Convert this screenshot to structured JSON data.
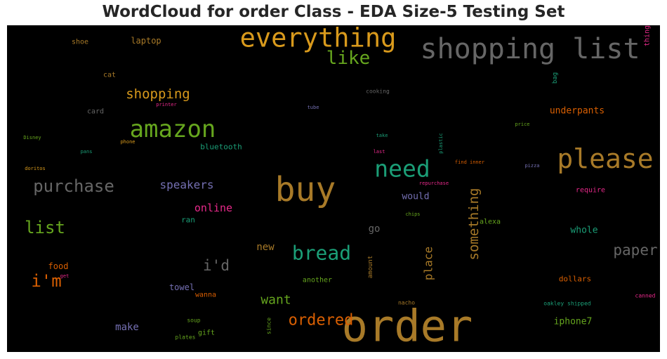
{
  "chart_data": {
    "type": "wordcloud",
    "title": "WordCloud for order Class - EDA Size-5 Testing Set",
    "background": "#000000",
    "words": [
      {
        "text": "order",
        "color": "#a87a28",
        "weight": 62
      },
      {
        "text": "buy",
        "color": "#a87a28",
        "weight": 48
      },
      {
        "text": "shopping list",
        "color": "#666666",
        "weight": 40
      },
      {
        "text": "everything",
        "color": "#d99a1c",
        "weight": 37
      },
      {
        "text": "please",
        "color": "#a87a28",
        "weight": 38
      },
      {
        "text": "amazon",
        "color": "#66a61e",
        "weight": 34
      },
      {
        "text": "need",
        "color": "#1b9e77",
        "weight": 33
      },
      {
        "text": "bread",
        "color": "#1b9e77",
        "weight": 28
      },
      {
        "text": "like",
        "color": "#66a61e",
        "weight": 26
      },
      {
        "text": "purchase",
        "color": "#666666",
        "weight": 24
      },
      {
        "text": "list",
        "color": "#66a61e",
        "weight": 24
      },
      {
        "text": "i'm",
        "color": "#d95f02",
        "weight": 24
      },
      {
        "text": "paper",
        "color": "#666666",
        "weight": 21
      },
      {
        "text": "ordered",
        "color": "#d95f02",
        "weight": 22
      },
      {
        "text": "something",
        "color": "#a87a28",
        "weight": 19
      },
      {
        "text": "i'd",
        "color": "#666666",
        "weight": 21
      },
      {
        "text": "want",
        "color": "#66a61e",
        "weight": 18
      },
      {
        "text": "shopping",
        "color": "#d99a1c",
        "weight": 19
      },
      {
        "text": "speakers",
        "color": "#7570b3",
        "weight": 16
      },
      {
        "text": "place",
        "color": "#a87a28",
        "weight": 16
      },
      {
        "text": "online",
        "color": "#e7298a",
        "weight": 15
      },
      {
        "text": "new",
        "color": "#a87a28",
        "weight": 14
      },
      {
        "text": "go",
        "color": "#666666",
        "weight": 14
      },
      {
        "text": "iphone7",
        "color": "#66a61e",
        "weight": 13
      },
      {
        "text": "make",
        "color": "#7570b3",
        "weight": 14
      },
      {
        "text": "whole",
        "color": "#1b9e77",
        "weight": 13
      },
      {
        "text": "underpants",
        "color": "#d95f02",
        "weight": 13
      },
      {
        "text": "would",
        "color": "#7570b3",
        "weight": 13
      },
      {
        "text": "towel",
        "color": "#7570b3",
        "weight": 12
      },
      {
        "text": "food",
        "color": "#d95f02",
        "weight": 12
      },
      {
        "text": "laptop",
        "color": "#a87a28",
        "weight": 12
      },
      {
        "text": "bluetooth",
        "color": "#1b9e77",
        "weight": 11
      },
      {
        "text": "dollars",
        "color": "#d95f02",
        "weight": 11
      },
      {
        "text": "ran",
        "color": "#1b9e77",
        "weight": 11
      },
      {
        "text": "shoe",
        "color": "#a87a28",
        "weight": 10
      },
      {
        "text": "card",
        "color": "#666666",
        "weight": 10
      },
      {
        "text": "cat",
        "color": "#a87a28",
        "weight": 10
      },
      {
        "text": "alexa",
        "color": "#66a61e",
        "weight": 10
      },
      {
        "text": "require",
        "color": "#e7298a",
        "weight": 10
      },
      {
        "text": "another",
        "color": "#66a61e",
        "weight": 10
      },
      {
        "text": "wanna",
        "color": "#d95f02",
        "weight": 10
      },
      {
        "text": "gift",
        "color": "#66a61e",
        "weight": 10
      },
      {
        "text": "thing",
        "color": "#e7298a",
        "weight": 10
      },
      {
        "text": "amount",
        "color": "#a87a28",
        "weight": 9
      },
      {
        "text": "bag",
        "color": "#1b9e77",
        "weight": 9
      },
      {
        "text": "soup",
        "color": "#66a61e",
        "weight": 8
      },
      {
        "text": "plates",
        "color": "#66a61e",
        "weight": 8
      },
      {
        "text": "since",
        "color": "#66a61e",
        "weight": 8
      },
      {
        "text": "nacho",
        "color": "#a87a28",
        "weight": 8
      },
      {
        "text": "oakley shipped",
        "color": "#1b9e77",
        "weight": 8
      },
      {
        "text": "canned",
        "color": "#e7298a",
        "weight": 8
      },
      {
        "text": "cooking",
        "color": "#666666",
        "weight": 8
      },
      {
        "text": "printer",
        "color": "#e7298a",
        "weight": 7
      },
      {
        "text": "tube",
        "color": "#7570b3",
        "weight": 7
      },
      {
        "text": "price",
        "color": "#66a61e",
        "weight": 7
      },
      {
        "text": "take",
        "color": "#1b9e77",
        "weight": 7
      },
      {
        "text": "plastic",
        "color": "#1b9e77",
        "weight": 7
      },
      {
        "text": "Disney",
        "color": "#66a61e",
        "weight": 7
      },
      {
        "text": "pans",
        "color": "#1b9e77",
        "weight": 7
      },
      {
        "text": "phone",
        "color": "#d99a1c",
        "weight": 7
      },
      {
        "text": "last",
        "color": "#e7298a",
        "weight": 7
      },
      {
        "text": "find inner",
        "color": "#d95f02",
        "weight": 7
      },
      {
        "text": "pizza",
        "color": "#7570b3",
        "weight": 7
      },
      {
        "text": "doritos",
        "color": "#d99a1c",
        "weight": 7
      },
      {
        "text": "repurchase",
        "color": "#e7298a",
        "weight": 7
      },
      {
        "text": "chips",
        "color": "#66a61e",
        "weight": 7
      },
      {
        "text": "get",
        "color": "#e7298a",
        "weight": 7
      }
    ]
  }
}
